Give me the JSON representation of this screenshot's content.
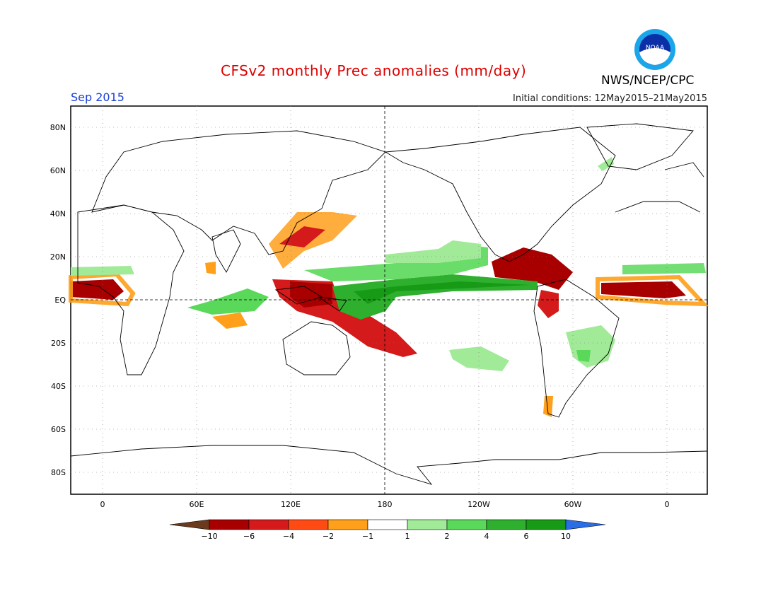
{
  "title": "CFSv2 monthly Prec anomalies (mm/day)",
  "agency": "NWS/NCEP/CPC",
  "logo_text": "NOAA",
  "period": "Sep 2015",
  "initial_conditions": "Initial conditions: 12May2015–21May2015",
  "lat_labels": [
    "80N",
    "60N",
    "40N",
    "20N",
    "EQ",
    "20S",
    "40S",
    "60S",
    "80S"
  ],
  "lon_labels": [
    "0",
    "60E",
    "120E",
    "180",
    "120W",
    "60W",
    "0"
  ],
  "colorbar": {
    "ticks": [
      "−10",
      "−6",
      "−4",
      "−2",
      "−1",
      "1",
      "2",
      "4",
      "6",
      "10"
    ],
    "colors": [
      "#6b3a1e",
      "#a80000",
      "#d41a1a",
      "#ff4a14",
      "#ff9f1a",
      "#ffffff",
      "#a0ea98",
      "#5ad85a",
      "#2eb02e",
      "#179b17",
      "#2a6ee6"
    ]
  },
  "colors": {
    "title": "#dd0000",
    "period": "#1a3fd6"
  }
}
